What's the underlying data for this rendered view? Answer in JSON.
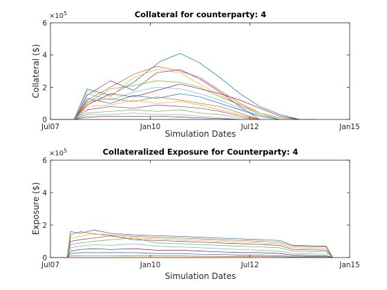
{
  "chart_data": [
    {
      "type": "line",
      "title": "Collateral for counterparty: 4",
      "xlabel": "Simulation Dates",
      "ylabel": "Collateral ($)",
      "x_ticks": [
        "Jul07",
        "Jan10",
        "Jul12",
        "Jan15"
      ],
      "x_tick_dates": [
        "2007-07-01",
        "2010-01-01",
        "2012-07-01",
        "2015-01-01"
      ],
      "xlim": [
        "2007-07-01",
        "2015-01-01"
      ],
      "y_ticks": [
        0,
        2,
        4,
        6
      ],
      "ylim": [
        0,
        6
      ],
      "y_exponent": "5",
      "y_scale_label": "×10",
      "grid": false,
      "series_colors": [
        "#0072BD",
        "#D95319",
        "#EDB120",
        "#7E2F8E",
        "#77AC30",
        "#4DBEEE",
        "#A2142F"
      ],
      "series": [
        {
          "x": [
            "2007-07-01",
            "2008-02-01",
            "2008-06-01",
            "2009-01-01",
            "2009-08-01",
            "2010-04-01",
            "2010-10-01",
            "2011-04-01",
            "2011-10-01",
            "2012-04-01",
            "2012-10-01",
            "2013-04-01",
            "2013-10-01",
            "2014-03-01"
          ],
          "values": [
            0,
            0,
            1.9,
            1.5,
            2.3,
            3.6,
            4.1,
            3.5,
            2.6,
            1.6,
            0.8,
            0.3,
            0,
            0
          ]
        },
        {
          "x": [
            "2007-07-01",
            "2008-02-01",
            "2008-06-01",
            "2009-01-01",
            "2009-08-01",
            "2010-03-01",
            "2010-10-01",
            "2011-04-01",
            "2011-10-01",
            "2012-04-01",
            "2012-10-01",
            "2013-04-01",
            "2013-10-01"
          ],
          "values": [
            0,
            0,
            1.2,
            2.0,
            2.8,
            3.3,
            3.0,
            2.6,
            1.8,
            1.0,
            0.4,
            0.1,
            0
          ]
        },
        {
          "x": [
            "2007-07-01",
            "2008-02-01",
            "2008-06-01",
            "2009-01-01",
            "2009-08-01",
            "2010-03-01",
            "2010-10-01",
            "2011-04-01",
            "2011-10-01",
            "2012-04-01",
            "2012-10-01",
            "2013-04-01"
          ],
          "values": [
            0,
            0,
            1.8,
            1.4,
            2.6,
            3.1,
            2.9,
            2.2,
            1.5,
            0.9,
            0.4,
            0
          ]
        },
        {
          "x": [
            "2007-07-01",
            "2008-02-01",
            "2008-06-01",
            "2009-01-01",
            "2009-08-01",
            "2010-03-01",
            "2010-10-01",
            "2011-04-01",
            "2011-10-01",
            "2012-04-01",
            "2012-10-01"
          ],
          "values": [
            0,
            0,
            1.5,
            2.4,
            1.8,
            2.9,
            3.1,
            2.5,
            1.7,
            0.8,
            0
          ]
        },
        {
          "x": [
            "2007-07-01",
            "2008-02-01",
            "2008-06-01",
            "2009-01-01",
            "2009-08-01",
            "2010-03-01",
            "2010-10-01",
            "2011-04-01",
            "2011-10-01",
            "2012-04-01",
            "2012-10-01",
            "2013-04-01"
          ],
          "values": [
            0,
            0,
            1.0,
            1.9,
            2.1,
            2.4,
            2.3,
            2.0,
            1.4,
            0.9,
            0.3,
            0
          ]
        },
        {
          "x": [
            "2007-07-01",
            "2008-02-01",
            "2008-06-01",
            "2009-01-01",
            "2009-08-01",
            "2010-03-01",
            "2010-10-01",
            "2011-04-01",
            "2011-10-01",
            "2012-04-01",
            "2012-10-01",
            "2013-04-01"
          ],
          "values": [
            0,
            0,
            1.6,
            1.2,
            1.7,
            2.0,
            1.9,
            1.6,
            1.2,
            0.7,
            0.2,
            0
          ]
        },
        {
          "x": [
            "2007-07-01",
            "2008-02-01",
            "2008-06-01",
            "2009-01-01",
            "2009-08-01",
            "2010-03-01",
            "2010-10-01",
            "2011-04-01",
            "2011-10-01",
            "2012-04-01",
            "2012-10-01",
            "2013-04-01",
            "2013-10-01"
          ],
          "values": [
            0,
            0,
            0.9,
            1.6,
            1.4,
            1.8,
            2.2,
            1.9,
            1.6,
            1.2,
            0.7,
            0.2,
            0
          ]
        },
        {
          "x": [
            "2007-07-01",
            "2008-02-01",
            "2008-06-01",
            "2009-01-01",
            "2009-08-01",
            "2010-03-01",
            "2010-10-01",
            "2011-04-01",
            "2011-10-01",
            "2012-04-01",
            "2012-10-01",
            "2013-04-01"
          ],
          "values": [
            0,
            0,
            1.3,
            1.0,
            1.5,
            1.3,
            1.6,
            1.4,
            1.0,
            0.6,
            0.2,
            0
          ]
        },
        {
          "x": [
            "2007-07-01",
            "2008-02-01",
            "2008-06-01",
            "2009-01-01",
            "2009-08-01",
            "2010-03-01",
            "2010-10-01",
            "2011-04-01",
            "2011-10-01",
            "2012-04-01",
            "2012-10-01"
          ],
          "values": [
            0,
            0,
            1.1,
            1.3,
            1.1,
            1.4,
            1.2,
            1.0,
            0.8,
            0.4,
            0
          ]
        },
        {
          "x": [
            "2007-07-01",
            "2008-02-01",
            "2008-06-01",
            "2009-01-01",
            "2009-08-01",
            "2010-03-01",
            "2010-10-01",
            "2011-04-01",
            "2011-10-01",
            "2012-04-01",
            "2012-10-01"
          ],
          "values": [
            0,
            0,
            0.8,
            0.9,
            1.2,
            1.0,
            1.1,
            0.9,
            0.6,
            0.3,
            0
          ]
        },
        {
          "x": [
            "2007-07-01",
            "2008-02-01",
            "2008-06-01",
            "2009-01-01",
            "2009-08-01",
            "2010-03-01",
            "2010-10-01",
            "2011-04-01",
            "2011-10-01",
            "2012-04-01",
            "2012-10-01"
          ],
          "values": [
            0,
            0,
            0.6,
            0.8,
            0.7,
            0.9,
            0.8,
            0.7,
            0.5,
            0.2,
            0
          ]
        },
        {
          "x": [
            "2007-07-01",
            "2008-02-01",
            "2008-06-01",
            "2009-01-01",
            "2009-08-01",
            "2010-03-01",
            "2010-10-01",
            "2011-04-01",
            "2011-10-01",
            "2012-04-01",
            "2012-10-01"
          ],
          "values": [
            0,
            0,
            0.4,
            0.5,
            0.6,
            0.5,
            0.6,
            0.4,
            0.3,
            0.1,
            0
          ]
        },
        {
          "x": [
            "2007-07-01",
            "2008-02-01",
            "2008-06-01",
            "2009-01-01",
            "2009-08-01",
            "2010-03-01",
            "2010-10-01",
            "2011-04-01",
            "2011-10-01",
            "2012-04-01"
          ],
          "values": [
            0,
            0,
            0.3,
            0.3,
            0.4,
            0.3,
            0.3,
            0.2,
            0.1,
            0
          ]
        },
        {
          "x": [
            "2007-07-01",
            "2008-02-01",
            "2008-06-01",
            "2009-01-01",
            "2009-08-01",
            "2010-03-01",
            "2010-10-01",
            "2011-04-01",
            "2011-10-01",
            "2012-04-01"
          ],
          "values": [
            0,
            0,
            0.15,
            0.2,
            0.2,
            0.2,
            0.15,
            0.1,
            0.05,
            0
          ]
        }
      ]
    },
    {
      "type": "line",
      "title": "Collateralized Exposure for Counterparty: 4",
      "xlabel": "Simulation Dates",
      "ylabel": "Exposure ($)",
      "x_ticks": [
        "Jul07",
        "Jan10",
        "Jul12",
        "Jan15"
      ],
      "x_tick_dates": [
        "2007-07-01",
        "2010-01-01",
        "2012-07-01",
        "2015-01-01"
      ],
      "xlim": [
        "2007-07-01",
        "2015-01-01"
      ],
      "y_ticks": [
        0,
        2,
        4,
        6
      ],
      "ylim": [
        0,
        6
      ],
      "y_exponent": "5",
      "y_scale_label": "×10",
      "grid": false,
      "series_colors": [
        "#0072BD",
        "#D95319",
        "#EDB120",
        "#7E2F8E",
        "#77AC30",
        "#4DBEEE",
        "#A2142F"
      ],
      "series": [
        {
          "x": [
            "2007-07-01",
            "2007-12-01",
            "2008-01-01",
            "2008-04-01",
            "2008-08-01",
            "2009-01-01",
            "2009-08-01",
            "2010-03-01",
            "2010-10-01",
            "2011-04-01",
            "2011-10-01",
            "2012-04-01",
            "2012-10-01",
            "2013-04-01",
            "2013-08-01",
            "2014-06-01",
            "2014-08-01"
          ],
          "values": [
            0,
            0,
            1.6,
            1.5,
            1.7,
            1.5,
            1.4,
            1.35,
            1.3,
            1.25,
            1.2,
            1.15,
            1.1,
            1.05,
            0.75,
            0.7,
            0
          ]
        },
        {
          "x": [
            "2007-07-01",
            "2007-12-01",
            "2008-01-01",
            "2008-04-01",
            "2008-08-01",
            "2009-01-01",
            "2009-08-01",
            "2010-03-01",
            "2010-10-01",
            "2011-04-01",
            "2011-10-01",
            "2012-04-01",
            "2012-10-01",
            "2013-04-01",
            "2013-08-01",
            "2014-06-01",
            "2014-08-01"
          ],
          "values": [
            0,
            0,
            1.4,
            1.6,
            1.45,
            1.4,
            1.3,
            1.25,
            1.2,
            1.15,
            1.1,
            1.05,
            1.0,
            0.95,
            0.7,
            0.65,
            0
          ]
        },
        {
          "x": [
            "2007-07-01",
            "2007-12-01",
            "2008-01-01",
            "2008-04-01",
            "2008-08-01",
            "2009-01-01",
            "2009-08-01",
            "2010-03-01",
            "2010-10-01",
            "2011-04-01",
            "2011-10-01",
            "2012-04-01",
            "2012-10-01",
            "2013-04-01",
            "2013-08-01",
            "2014-06-01",
            "2014-08-01"
          ],
          "values": [
            0,
            0,
            1.2,
            1.3,
            1.5,
            1.3,
            1.2,
            1.15,
            1.1,
            1.05,
            1.0,
            0.95,
            0.9,
            0.85,
            0.6,
            0.55,
            0
          ]
        },
        {
          "x": [
            "2007-07-01",
            "2007-12-01",
            "2008-01-01",
            "2008-04-01",
            "2008-08-01",
            "2009-01-01",
            "2009-08-01",
            "2010-03-01",
            "2010-10-01",
            "2011-04-01",
            "2011-10-01",
            "2012-04-01",
            "2012-10-01",
            "2013-04-01",
            "2013-08-01",
            "2014-06-01",
            "2014-08-01"
          ],
          "values": [
            0,
            0,
            1.0,
            1.1,
            1.2,
            1.35,
            1.1,
            1.05,
            1.0,
            0.95,
            0.9,
            0.85,
            0.8,
            0.75,
            0.5,
            0.45,
            0
          ]
        },
        {
          "x": [
            "2007-07-01",
            "2007-12-01",
            "2008-01-01",
            "2008-04-01",
            "2008-08-01",
            "2009-01-01",
            "2009-08-01",
            "2010-03-01",
            "2010-10-01",
            "2011-04-01",
            "2011-10-01",
            "2012-04-01",
            "2012-10-01",
            "2013-04-01",
            "2013-08-01",
            "2014-06-01",
            "2014-08-01"
          ],
          "values": [
            0,
            0,
            0.8,
            0.9,
            1.0,
            1.1,
            1.2,
            0.9,
            0.85,
            0.8,
            0.75,
            0.7,
            0.65,
            0.6,
            0.4,
            0.35,
            0
          ]
        },
        {
          "x": [
            "2007-07-01",
            "2007-12-01",
            "2008-01-01",
            "2008-04-01",
            "2008-08-01",
            "2009-01-01",
            "2009-08-01",
            "2010-03-01",
            "2010-10-01",
            "2011-04-01",
            "2011-10-01",
            "2012-04-01",
            "2012-10-01",
            "2013-04-01",
            "2013-08-01",
            "2014-06-01",
            "2014-08-01"
          ],
          "values": [
            0,
            0,
            0.6,
            0.7,
            0.8,
            0.75,
            0.85,
            0.7,
            0.65,
            0.6,
            0.55,
            0.5,
            0.45,
            0.4,
            0.25,
            0.2,
            0
          ]
        },
        {
          "x": [
            "2007-07-01",
            "2007-12-01",
            "2008-01-01",
            "2008-04-01",
            "2008-08-01",
            "2009-01-01",
            "2009-08-01",
            "2010-03-01",
            "2010-10-01",
            "2011-04-01",
            "2011-10-01",
            "2012-04-01",
            "2012-10-01",
            "2013-04-01",
            "2013-08-01",
            "2014-06-01",
            "2014-08-01"
          ],
          "values": [
            0,
            0,
            0.4,
            0.5,
            0.55,
            0.5,
            0.55,
            0.45,
            0.45,
            0.4,
            0.35,
            0.3,
            0.3,
            0.25,
            0.15,
            0.1,
            0
          ]
        },
        {
          "x": [
            "2007-07-01",
            "2007-12-01",
            "2008-01-01",
            "2008-04-01",
            "2008-08-01",
            "2009-01-01",
            "2009-08-01",
            "2010-03-01",
            "2010-10-01",
            "2011-04-01",
            "2011-10-01",
            "2012-04-01",
            "2012-10-01",
            "2013-04-01",
            "2013-08-01",
            "2014-06-01",
            "2014-08-01"
          ],
          "values": [
            0,
            0,
            0.25,
            0.3,
            0.3,
            0.3,
            0.3,
            0.25,
            0.25,
            0.2,
            0.2,
            0.15,
            0.15,
            0.1,
            0.08,
            0.05,
            0
          ]
        },
        {
          "x": [
            "2007-07-01",
            "2007-12-01",
            "2008-01-01",
            "2008-04-01",
            "2008-08-01",
            "2009-01-01",
            "2009-08-01",
            "2010-03-01",
            "2010-10-01",
            "2011-04-01",
            "2011-10-01",
            "2012-04-01",
            "2012-10-01",
            "2013-04-01",
            "2013-08-01",
            "2014-06-01",
            "2014-08-01"
          ],
          "values": [
            0,
            0,
            0.1,
            0.12,
            0.12,
            0.12,
            0.1,
            0.1,
            0.1,
            0.08,
            0.08,
            0.06,
            0.06,
            0.05,
            0.03,
            0.02,
            0
          ]
        }
      ]
    }
  ]
}
